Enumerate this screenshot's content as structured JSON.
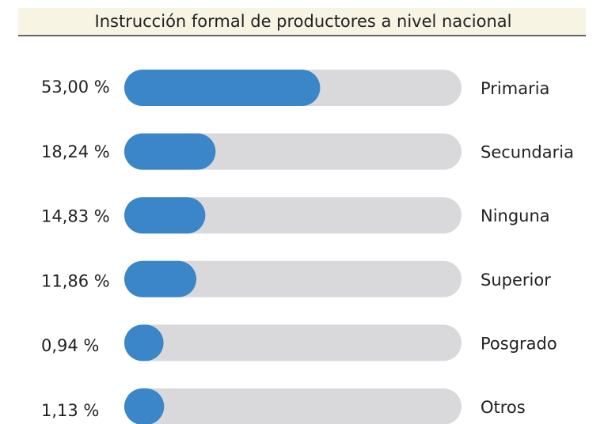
{
  "chart_data": {
    "type": "bar",
    "title": "Instrucción formal de productores a nivel nacional",
    "categories": [
      "Primaria",
      "Secundaria",
      "Ninguna",
      "Superior",
      "Posgrado",
      "Otros"
    ],
    "values": [
      53.0,
      18.24,
      14.83,
      11.86,
      0.94,
      1.13
    ],
    "value_labels": [
      "53,00 %",
      "18,24 %",
      "14,83 %",
      "11,86 %",
      "0,94 %",
      "1,13 %"
    ],
    "color": "#3a86c8",
    "track_color": "#d9d9db"
  }
}
